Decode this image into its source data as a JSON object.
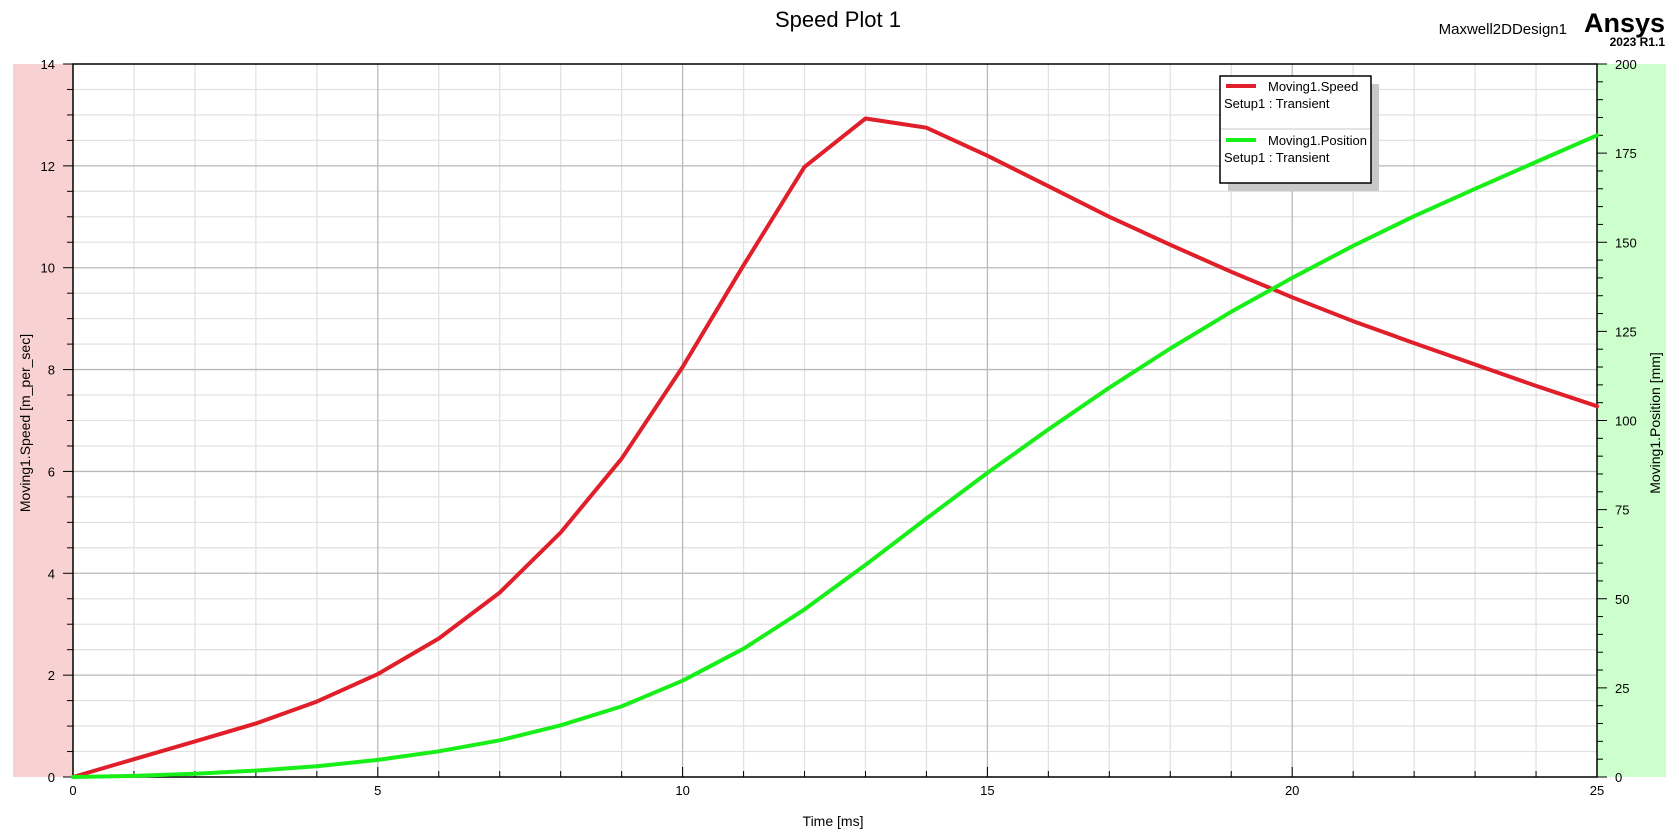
{
  "header": {
    "design_name": "Maxwell2DDesign1",
    "brand": "Ansys",
    "version": "2023 R1.1"
  },
  "colors": {
    "speed": "#e01f2a",
    "position": "#18ee18",
    "left_band": "#f8d2d2",
    "right_band": "#ccffcc",
    "grid_major": "#b9b9b9",
    "grid_minor": "#e2e2e2"
  },
  "chart_data": {
    "type": "line",
    "title": "Speed Plot 1",
    "xlabel": "Time [ms]",
    "ylabel": "Moving1.Speed [m_per_sec]",
    "y2label": "Moving1.Position [mm]",
    "xlim": [
      0,
      25
    ],
    "ylim": [
      0,
      14
    ],
    "y2lim": [
      0,
      200
    ],
    "x_ticks": [
      0,
      5,
      10,
      15,
      20,
      25
    ],
    "y_ticks": [
      0,
      2,
      4,
      6,
      8,
      10,
      12,
      14
    ],
    "y2_ticks": [
      0,
      25,
      50,
      75,
      100,
      125,
      150,
      175,
      200
    ],
    "grid": true,
    "legend_position": "top-right",
    "series": [
      {
        "name": "Moving1.Speed",
        "subtitle": "Setup1 : Transient",
        "axis": "left",
        "color": "#e01f2a",
        "x": [
          0,
          1,
          2,
          3,
          4,
          5,
          6,
          7,
          8,
          9,
          10,
          11,
          12,
          13,
          14,
          15,
          16,
          17,
          18,
          19,
          20,
          21,
          22,
          23,
          24,
          25
        ],
        "y": [
          0,
          0.35,
          0.7,
          1.05,
          1.48,
          2.02,
          2.72,
          3.62,
          4.8,
          6.25,
          8.05,
          10.05,
          11.98,
          12.93,
          12.75,
          12.2,
          11.6,
          11.0,
          10.45,
          9.92,
          9.42,
          8.95,
          8.52,
          8.1,
          7.68,
          7.28
        ]
      },
      {
        "name": "Moving1.Position",
        "subtitle": "Setup1 : Transient",
        "axis": "right",
        "color": "#18ee18",
        "x": [
          0,
          1,
          2,
          3,
          4,
          5,
          6,
          7,
          8,
          9,
          10,
          11,
          12,
          13,
          14,
          15,
          16,
          17,
          18,
          19,
          20,
          21,
          22,
          23,
          24,
          25
        ],
        "y": [
          0,
          0.3,
          0.9,
          1.8,
          3.0,
          4.8,
          7.2,
          10.3,
          14.5,
          19.8,
          27.0,
          36.0,
          47.0,
          59.5,
          72.5,
          85.3,
          97.5,
          109.2,
          120.2,
          130.5,
          140.0,
          149.0,
          157.3,
          165.0,
          172.5,
          180.0
        ]
      }
    ]
  }
}
